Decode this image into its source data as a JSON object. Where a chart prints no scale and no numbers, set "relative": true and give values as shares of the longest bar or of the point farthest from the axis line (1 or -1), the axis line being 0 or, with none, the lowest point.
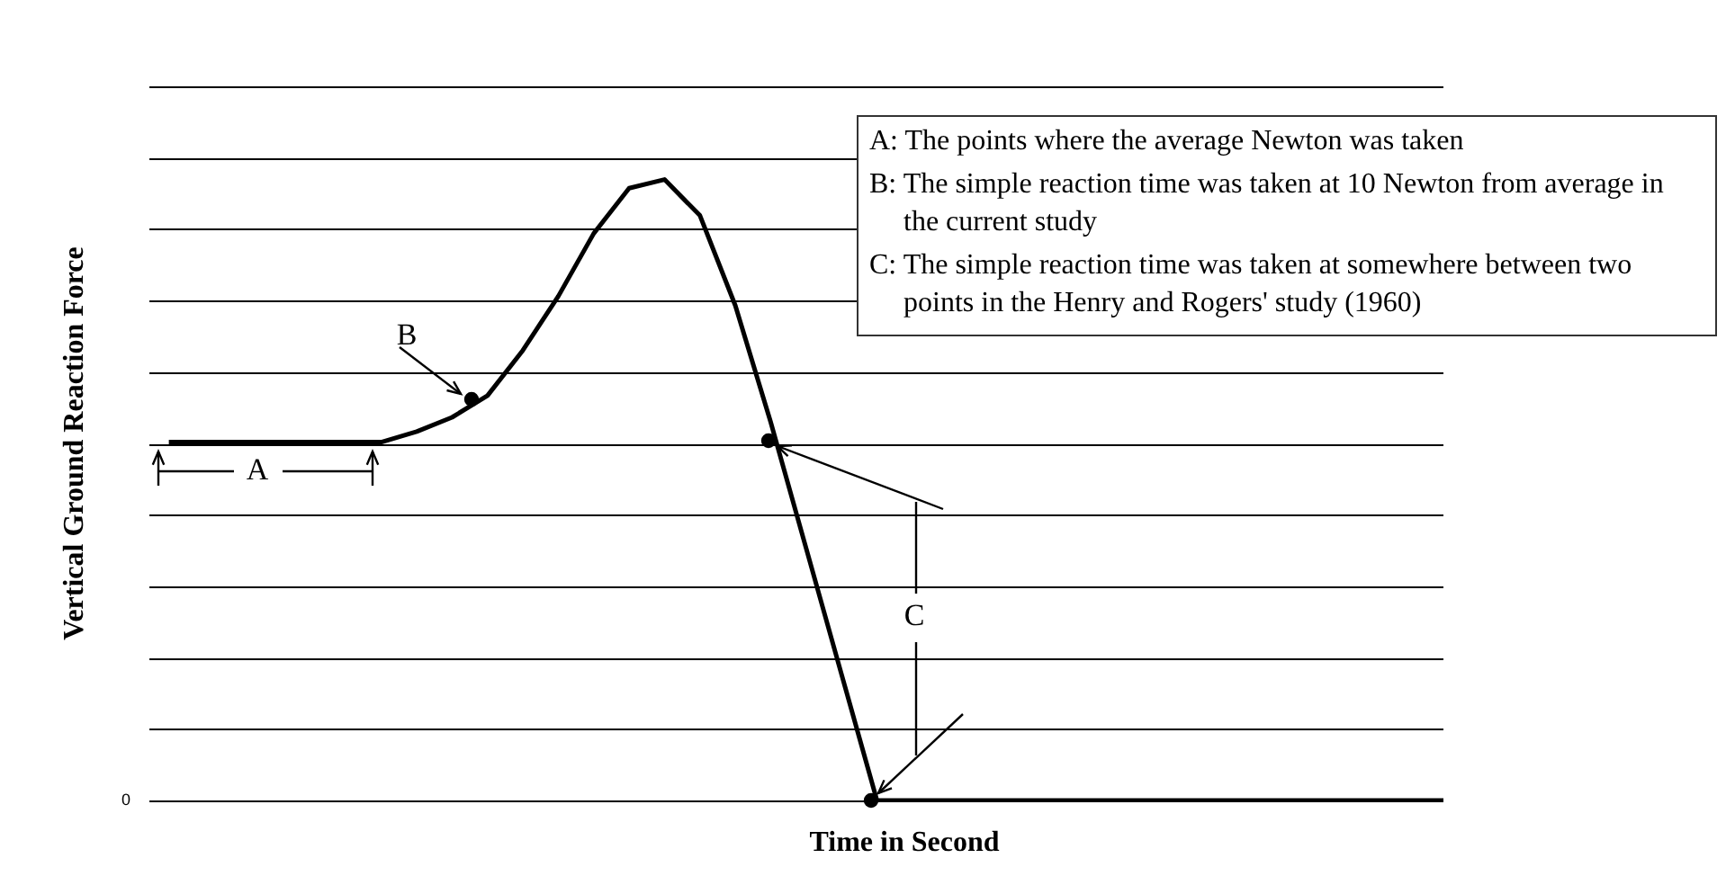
{
  "chart_data": {
    "type": "line",
    "relative": true,
    "xlabel": "Time in Second",
    "ylabel": "Vertical Ground Reaction Force",
    "grid": "y",
    "legend": false,
    "categories": [
      null,
      null,
      null,
      null,
      null,
      null,
      null,
      null,
      null,
      null,
      null,
      null,
      null,
      null,
      null,
      null,
      null,
      null,
      null,
      null,
      null,
      null,
      null,
      null,
      null,
      null,
      null,
      null,
      null,
      null,
      null,
      null,
      null,
      null,
      null,
      null,
      null
    ],
    "series": [
      {
        "color": "#000000",
        "values": [
          0.577,
          0.577,
          0.577,
          0.577,
          0.577,
          0.577,
          0.577,
          0.594,
          0.617,
          0.652,
          0.725,
          0.812,
          0.913,
          0.986,
          1,
          0.942,
          0.797,
          0.609,
          0.406,
          0.203,
          0,
          0,
          0,
          0,
          0,
          0,
          0,
          0,
          0,
          0,
          0,
          0,
          0,
          0,
          0,
          0,
          0
        ]
      }
    ],
    "annotations": [
      "A: The points where the average Newton was taken",
      "B: The simple reaction time was taken at 10 Newton from average in the current study",
      "C: The simple reaction time was taken at somewhere between two points in the Henry and Rogers' study (1960)",
      "A",
      "B",
      "C",
      "0"
    ]
  }
}
